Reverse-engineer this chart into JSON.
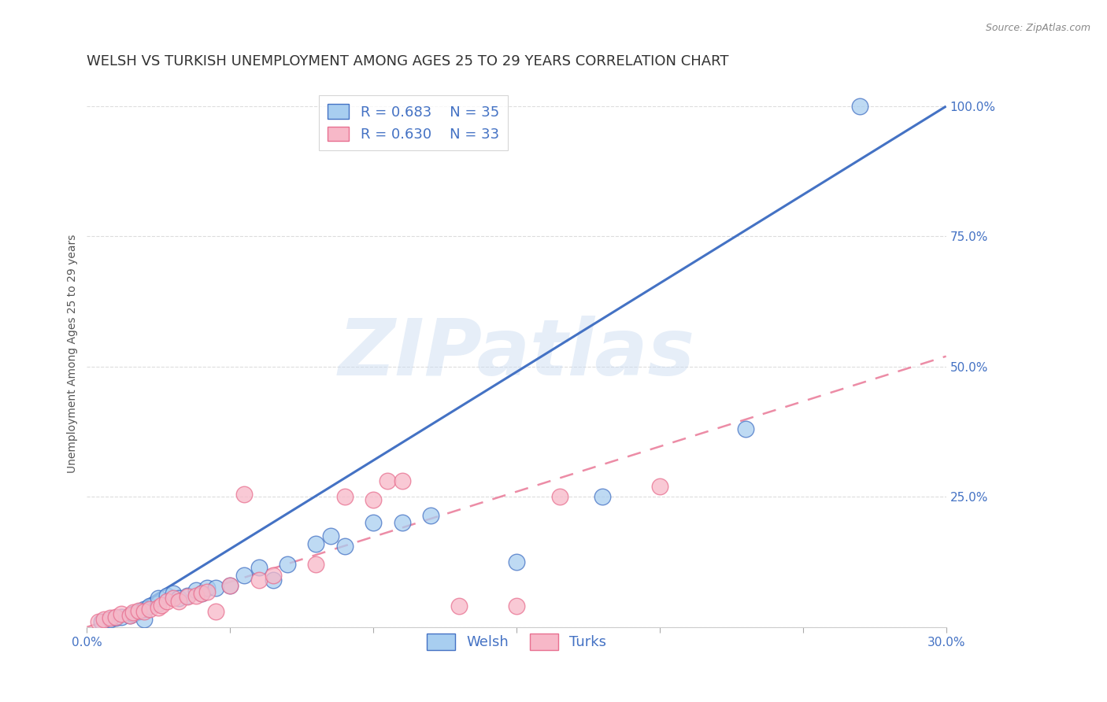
{
  "title": "WELSH VS TURKISH UNEMPLOYMENT AMONG AGES 25 TO 29 YEARS CORRELATION CHART",
  "source": "Source: ZipAtlas.com",
  "ylabel": "Unemployment Among Ages 25 to 29 years",
  "xlim": [
    0.0,
    0.3
  ],
  "ylim": [
    0.0,
    1.05
  ],
  "xticks": [
    0.0,
    0.05,
    0.1,
    0.15,
    0.2,
    0.25,
    0.3
  ],
  "xticklabels": [
    "0.0%",
    "",
    "",
    "",
    "",
    "",
    "30.0%"
  ],
  "yticks": [
    0.0,
    0.25,
    0.5,
    0.75,
    1.0
  ],
  "yticklabels": [
    "",
    "25.0%",
    "50.0%",
    "75.0%",
    "100.0%"
  ],
  "welsh_R": 0.683,
  "welsh_N": 35,
  "turks_R": 0.63,
  "turks_N": 33,
  "welsh_color": "#a8cef0",
  "turks_color": "#f7b8c8",
  "welsh_line_color": "#4472c4",
  "turks_line_color": "#e87090",
  "welsh_scatter_x": [
    0.005,
    0.008,
    0.01,
    0.012,
    0.015,
    0.016,
    0.018,
    0.02,
    0.02,
    0.022,
    0.025,
    0.025,
    0.028,
    0.03,
    0.032,
    0.035,
    0.038,
    0.04,
    0.042,
    0.045,
    0.05,
    0.055,
    0.06,
    0.065,
    0.07,
    0.08,
    0.085,
    0.09,
    0.1,
    0.11,
    0.12,
    0.15,
    0.18,
    0.23,
    0.27
  ],
  "welsh_scatter_y": [
    0.01,
    0.015,
    0.018,
    0.02,
    0.022,
    0.025,
    0.03,
    0.015,
    0.035,
    0.04,
    0.045,
    0.055,
    0.06,
    0.065,
    0.055,
    0.06,
    0.07,
    0.065,
    0.075,
    0.075,
    0.08,
    0.1,
    0.115,
    0.09,
    0.12,
    0.16,
    0.175,
    0.155,
    0.2,
    0.2,
    0.215,
    0.125,
    0.25,
    0.38,
    1.0
  ],
  "turks_scatter_x": [
    0.004,
    0.006,
    0.008,
    0.01,
    0.012,
    0.015,
    0.016,
    0.018,
    0.02,
    0.022,
    0.025,
    0.026,
    0.028,
    0.03,
    0.032,
    0.035,
    0.038,
    0.04,
    0.042,
    0.045,
    0.05,
    0.055,
    0.06,
    0.065,
    0.08,
    0.09,
    0.1,
    0.105,
    0.11,
    0.13,
    0.15,
    0.165,
    0.2
  ],
  "turks_scatter_y": [
    0.01,
    0.015,
    0.018,
    0.02,
    0.025,
    0.022,
    0.028,
    0.032,
    0.03,
    0.035,
    0.038,
    0.042,
    0.05,
    0.055,
    0.05,
    0.058,
    0.06,
    0.065,
    0.068,
    0.03,
    0.08,
    0.255,
    0.09,
    0.1,
    0.12,
    0.25,
    0.245,
    0.28,
    0.28,
    0.04,
    0.04,
    0.25,
    0.27
  ],
  "welsh_trend_x0": 0.0,
  "welsh_trend_y0": -0.02,
  "welsh_trend_x1": 0.3,
  "welsh_trend_y1": 1.0,
  "turks_trend_x0": 0.0,
  "turks_trend_y0": 0.0,
  "turks_trend_x1": 0.3,
  "turks_trend_y1": 0.52,
  "watermark": "ZIPatlas",
  "background_color": "#ffffff",
  "grid_color": "#dddddd",
  "axis_color": "#4472c4",
  "title_color": "#333333",
  "title_fontsize": 13,
  "label_fontsize": 10,
  "tick_fontsize": 11
}
